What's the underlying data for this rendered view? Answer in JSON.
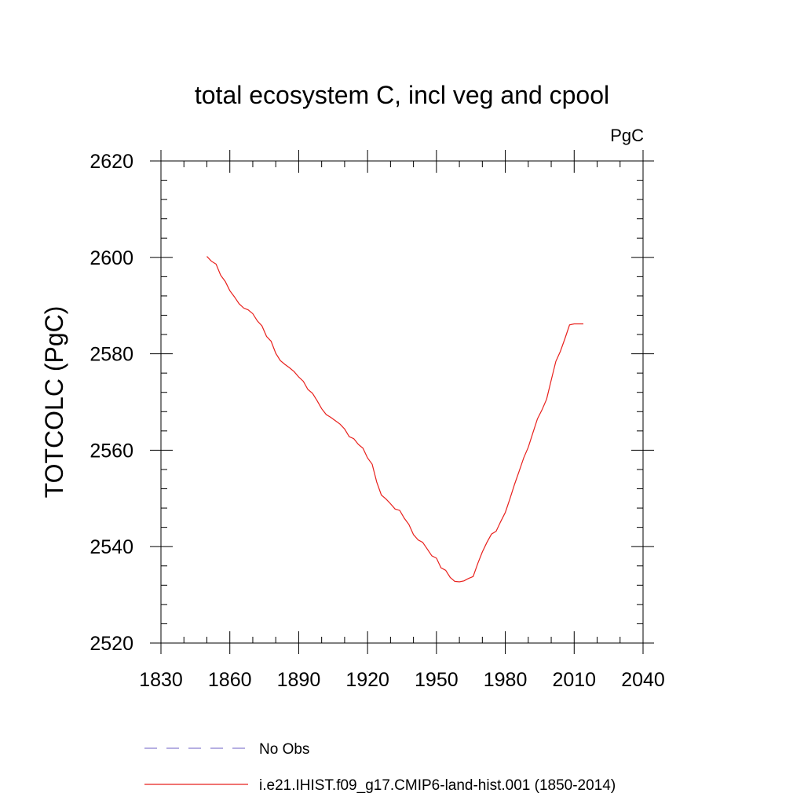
{
  "chart_data": {
    "type": "line",
    "title": "total ecosystem C, incl veg and cpool",
    "units": "PgC",
    "xlabel": "",
    "ylabel": "TOTCOLC  (PgC)",
    "xlim": [
      1830,
      2040
    ],
    "ylim": [
      2520,
      2620
    ],
    "x_ticks": [
      1830,
      1860,
      1890,
      1920,
      1950,
      1980,
      2010,
      2040
    ],
    "y_ticks": [
      2520,
      2540,
      2560,
      2580,
      2600,
      2620
    ],
    "grid": false,
    "legend_position": "bottom",
    "series": [
      {
        "name": "No Obs",
        "color": "#8a7fd0",
        "style": "dashed",
        "x": [],
        "y": []
      },
      {
        "name": "i.e21.IHIST.f09_g17.CMIP6-land-hist.001 (1850-2014)",
        "color": "#e8201c",
        "style": "solid",
        "x": [
          1850,
          1852,
          1854,
          1856,
          1858,
          1860,
          1862,
          1864,
          1866,
          1868,
          1870,
          1872,
          1874,
          1876,
          1878,
          1880,
          1882,
          1884,
          1886,
          1888,
          1890,
          1892,
          1894,
          1896,
          1898,
          1900,
          1902,
          1904,
          1906,
          1908,
          1910,
          1912,
          1914,
          1916,
          1918,
          1920,
          1922,
          1924,
          1926,
          1928,
          1930,
          1932,
          1934,
          1936,
          1938,
          1940,
          1942,
          1944,
          1946,
          1948,
          1950,
          1952,
          1954,
          1956,
          1958,
          1960,
          1962,
          1964,
          1966,
          1968,
          1970,
          1972,
          1974,
          1976,
          1978,
          1980,
          1982,
          1984,
          1986,
          1988,
          1990,
          1992,
          1994,
          1996,
          1998,
          2000,
          2002,
          2004,
          2006,
          2008,
          2010,
          2012,
          2014
        ],
        "y": [
          2600.2,
          2599.2,
          2598.6,
          2596.3,
          2595.0,
          2593.1,
          2591.8,
          2590.4,
          2589.5,
          2589.1,
          2588.3,
          2586.8,
          2585.8,
          2583.6,
          2582.6,
          2580.1,
          2578.6,
          2577.8,
          2577.1,
          2576.3,
          2575.2,
          2574.3,
          2572.6,
          2571.8,
          2570.3,
          2568.6,
          2567.4,
          2566.8,
          2566.1,
          2565.4,
          2564.4,
          2562.8,
          2562.4,
          2561.2,
          2560.4,
          2558.4,
          2557.1,
          2553.4,
          2550.7,
          2549.9,
          2548.9,
          2547.8,
          2547.5,
          2545.9,
          2544.6,
          2542.5,
          2541.4,
          2540.9,
          2539.5,
          2538.1,
          2537.6,
          2535.6,
          2535.1,
          2533.6,
          2532.8,
          2532.7,
          2532.9,
          2533.4,
          2533.8,
          2536.5,
          2538.9,
          2540.9,
          2542.6,
          2543.2,
          2545.2,
          2547.1,
          2549.9,
          2552.9,
          2555.6,
          2558.4,
          2560.6,
          2563.6,
          2566.5,
          2568.4,
          2570.6,
          2574.5,
          2578.4,
          2580.5,
          2583.2,
          2586.0,
          2586.2,
          2586.2,
          2586.2
        ]
      }
    ]
  }
}
